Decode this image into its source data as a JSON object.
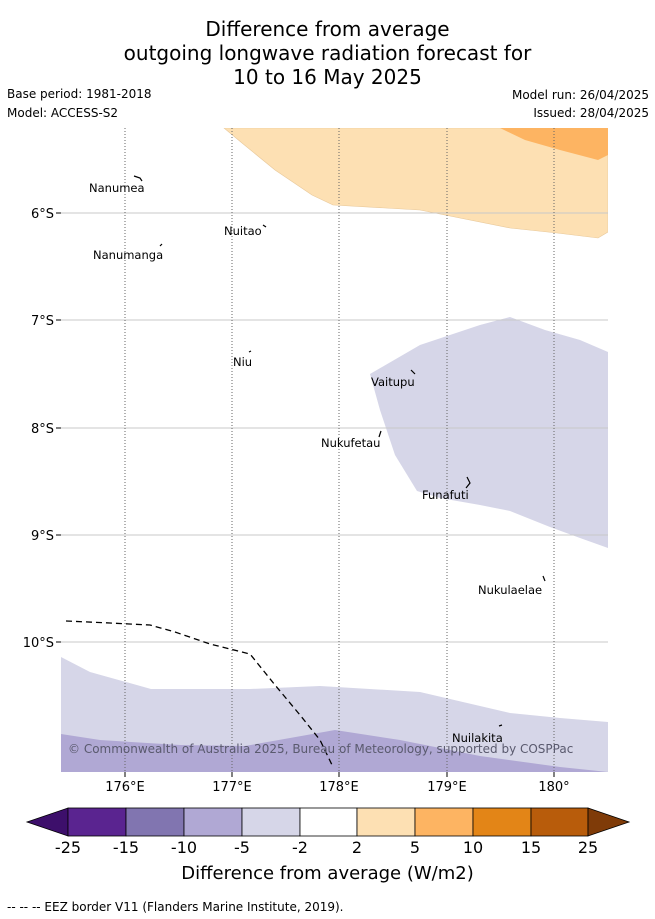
{
  "title": {
    "line1": "Difference from average",
    "line2": "outgoing longwave radiation forecast for",
    "line3": "10 to 16 May 2025"
  },
  "meta": {
    "base_period": "Base period: 1981-2018",
    "model": "Model: ACCESS-S2",
    "model_run": "Model run: 26/04/2025",
    "issued": "Issued: 28/04/2025"
  },
  "map": {
    "lon_ticks": [
      "176°E",
      "177°E",
      "178°E",
      "179°E",
      "180°"
    ],
    "lat_ticks": [
      "6°S",
      "7°S",
      "8°S",
      "9°S",
      "10°S"
    ],
    "places": [
      "Nanumea",
      "Nuitao",
      "Nanumanga",
      "Niu",
      "Vaitupu",
      "Nukufetau",
      "Funafuti",
      "Nukulaelae",
      "Nuilakita"
    ],
    "credit": "© Commonwealth of Australia 2025, Bureau of Meteorology, supported by COSPPac"
  },
  "colorbar": {
    "labels": [
      "-25",
      "-15",
      "-10",
      "-5",
      "-2",
      "2",
      "5",
      "10",
      "15",
      "25"
    ],
    "colors": [
      "#3d0f6b",
      "#5a2490",
      "#8175b0",
      "#b0a8d4",
      "#d6d6e8",
      "#ffffff",
      "#fde0b3",
      "#fdb462",
      "#e38517",
      "#b85c0b",
      "#7f3b08"
    ],
    "title": "Difference from average (W/m2)"
  },
  "legend": {
    "eez": "--  --  -- EEZ border V11 (Flanders Marine Institute, 2019)."
  }
}
